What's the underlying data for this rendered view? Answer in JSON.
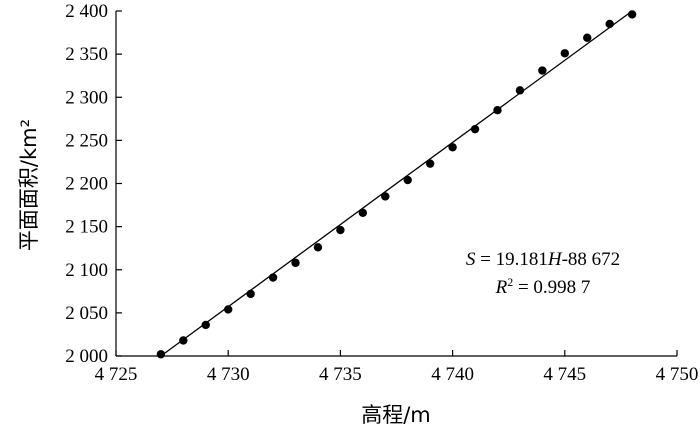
{
  "chart_data": {
    "type": "scatter",
    "title": "",
    "xlabel": "高程/m",
    "ylabel": "平面面积/km²",
    "xlim": [
      4725,
      4750
    ],
    "ylim": [
      2000,
      2400
    ],
    "xticks": [
      4725,
      4730,
      4735,
      4740,
      4745,
      4750
    ],
    "xtick_labels": [
      "4 725",
      "4 730",
      "4 735",
      "4 740",
      "4 745",
      "4 750"
    ],
    "yticks": [
      2000,
      2050,
      2100,
      2150,
      2200,
      2250,
      2300,
      2350,
      2400
    ],
    "ytick_labels": [
      "2 000",
      "2 050",
      "2 100",
      "2 150",
      "2 200",
      "2 250",
      "2 300",
      "2 350",
      "2 400"
    ],
    "grid": false,
    "legend": "none",
    "series": [
      {
        "x": [
          4727,
          4728,
          4729,
          4730,
          4731,
          4732,
          4733,
          4734,
          4735,
          4736,
          4737,
          4738,
          4739,
          4740,
          4741,
          4742,
          4743,
          4744,
          4745,
          4746,
          4747,
          4748
        ],
        "y": [
          2002,
          2018,
          2036,
          2054,
          2072,
          2091,
          2108,
          2126,
          2146,
          2166,
          2185,
          2204,
          2223,
          2242,
          2263,
          2285,
          2308,
          2331,
          2351,
          2369,
          2385,
          2396
        ]
      }
    ],
    "fit_line": {
      "x": [
        4727,
        4748
      ],
      "y": [
        2000,
        2400
      ]
    },
    "annotations": [
      {
        "pre": "S",
        "mid": " = 19.181",
        "var": "H",
        "post": "-88 672"
      },
      {
        "pre": "R",
        "sup": "2",
        "post": " = 0.998 7"
      }
    ]
  }
}
